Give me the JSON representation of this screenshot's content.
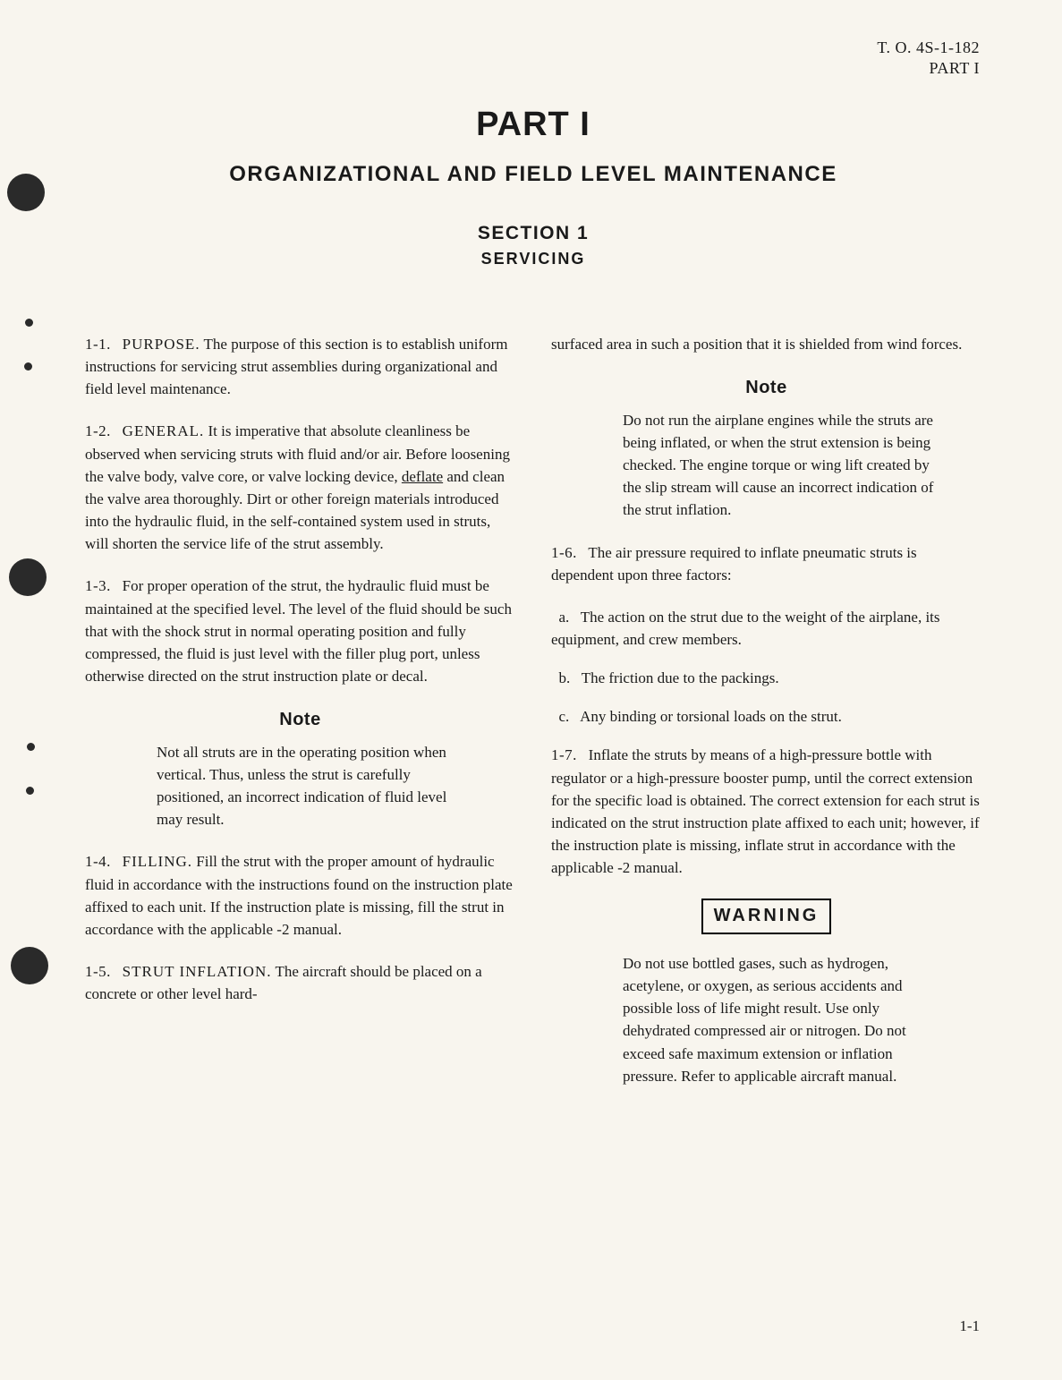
{
  "header": {
    "line1": "T. O. 4S-1-182",
    "line2": "PART I"
  },
  "titles": {
    "part": "PART I",
    "main": "ORGANIZATIONAL AND FIELD LEVEL MAINTENANCE",
    "section": "SECTION 1",
    "sectionLabel": "SERVICING"
  },
  "left": {
    "p1": {
      "num": "1-1.",
      "title": "PURPOSE.",
      "body": "The purpose of this section is to establish uniform instructions for servicing strut assemblies during organizational and field level maintenance."
    },
    "p2": {
      "num": "1-2.",
      "title": "GENERAL.",
      "pre": "It is imperative that absolute cleanliness be observed when servicing struts with fluid and/or air. Before loosening the valve body, valve core, or valve locking device, ",
      "u": "deflate",
      "post": " and clean the valve area thoroughly. Dirt or other foreign materials introduced into the hydraulic fluid, in the self-contained system used in struts, will shorten the service life of the strut assembly."
    },
    "p3": {
      "num": "1-3.",
      "body": "For proper operation of the strut, the hydraulic fluid must be maintained at the specified level. The level of the fluid should be such that with the shock strut in normal operating position and fully compressed, the fluid is just level with the filler plug port, unless otherwise directed on the strut instruction plate or decal."
    },
    "note1": {
      "heading": "Note",
      "body": "Not all struts are in the operating position when vertical. Thus, unless the strut is carefully positioned, an incorrect indication of fluid level may result."
    },
    "p4": {
      "num": "1-4.",
      "title": "FILLING.",
      "body": "Fill the strut with the proper amount of hydraulic fluid in accordance with the instructions found on the instruction plate affixed to each unit. If the instruction plate is missing, fill the strut in accordance with the applicable -2 manual."
    },
    "p5": {
      "num": "1-5.",
      "title": "STRUT INFLATION.",
      "body": "The aircraft should be placed on a concrete or other level hard-"
    }
  },
  "right": {
    "p5cont": "surfaced area in such a position that it is shielded from wind forces.",
    "note2": {
      "heading": "Note",
      "body": "Do not run the airplane engines while the struts are being inflated, or when the strut extension is being checked. The engine torque or wing lift created by the slip stream will cause an incorrect indication of the strut inflation."
    },
    "p6": {
      "num": "1-6.",
      "body": "The air pressure required to inflate pneumatic struts is dependent upon three factors:"
    },
    "a": {
      "label": "a.",
      "body": "The action on the strut due to the weight of the airplane, its equipment, and crew members."
    },
    "b": {
      "label": "b.",
      "body": "The friction due to the packings."
    },
    "c": {
      "label": "c.",
      "body": "Any binding or torsional loads on the strut."
    },
    "p7": {
      "num": "1-7.",
      "body": "Inflate the struts by means of a high-pressure bottle with regulator or a high-pressure booster pump, until the correct extension for the specific load is obtained. The correct extension for each strut is indicated on the strut instruction plate affixed to each unit; however, if the instruction plate is missing, inflate strut in accordance with the applicable -2 manual."
    },
    "warning": {
      "heading": "WARNING",
      "body": "Do not use bottled gases, such as hydrogen, acetylene, or oxygen, as serious accidents and possible loss of life might result. Use only dehydrated compressed air or nitrogen. Do not exceed safe maximum extension or inflation pressure. Refer to applicable aircraft manual."
    }
  },
  "pageNumber": "1-1"
}
